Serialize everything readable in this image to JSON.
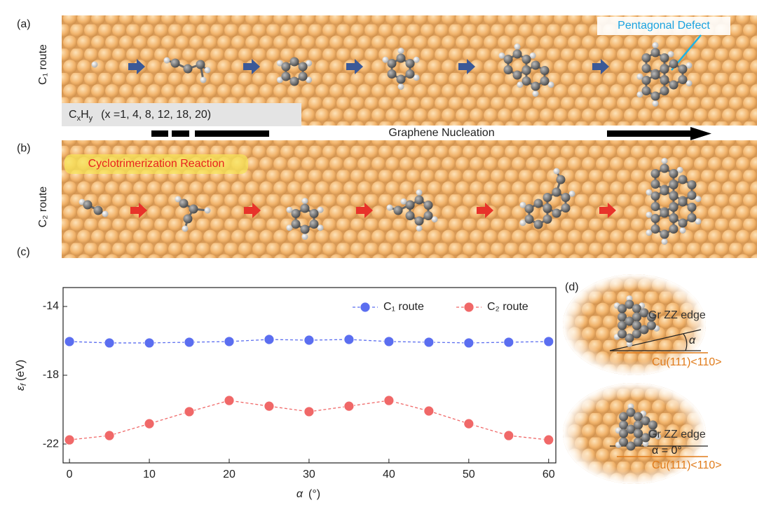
{
  "panels": {
    "a": {
      "label": "(a)",
      "route": "C₁ route",
      "defect": "Pentagonal Defect",
      "formula": {
        "c": "C",
        "x": "x",
        "h": "H",
        "y": "y",
        "list": "(x =1, 4, 8, 12, 18, 20)"
      },
      "nucleation": "Graphene Nucleation"
    },
    "b": {
      "label": "(b)",
      "route": "C₂ route",
      "reaction": "Cyclotrimerization Reaction"
    },
    "c": {
      "label": "(c)"
    },
    "d": {
      "label": "(d)",
      "top": {
        "edge": "Gr ZZ edge",
        "angle": "α",
        "surface": "Cu(111)<110>"
      },
      "bottom": {
        "edge": "Gr ZZ edge",
        "angle": "α = 0°",
        "surface": "Cu(111)<110>"
      }
    }
  },
  "chart_data": {
    "type": "line",
    "xlabel": {
      "symbol": "α",
      "unit": "(°)"
    },
    "ylabel": {
      "symbol": "ε",
      "sub": "f",
      "unit": "(eV)"
    },
    "x": [
      0,
      5,
      10,
      15,
      20,
      25,
      30,
      35,
      40,
      45,
      50,
      55,
      60
    ],
    "series": [
      {
        "name": "C₁ route",
        "color": "#5b6ef0",
        "values": [
          -16.04,
          -16.12,
          -16.12,
          -16.08,
          -16.04,
          -15.92,
          -15.96,
          -15.92,
          -16.04,
          -16.08,
          -16.12,
          -16.08,
          -16.04
        ]
      },
      {
        "name": "C₂ route",
        "color": "#f06868",
        "values": [
          -21.76,
          -21.51,
          -20.82,
          -20.12,
          -19.47,
          -19.8,
          -20.12,
          -19.8,
          -19.47,
          -20.08,
          -20.82,
          -21.51,
          -21.76
        ]
      }
    ],
    "xlim": [
      -0.8,
      60.9
    ],
    "ylim": [
      -23.1,
      -12.9
    ],
    "xticks": [
      0,
      10,
      20,
      30,
      40,
      50,
      60
    ],
    "yticks": [
      -22,
      -18,
      -14
    ],
    "legend": "top-right"
  }
}
